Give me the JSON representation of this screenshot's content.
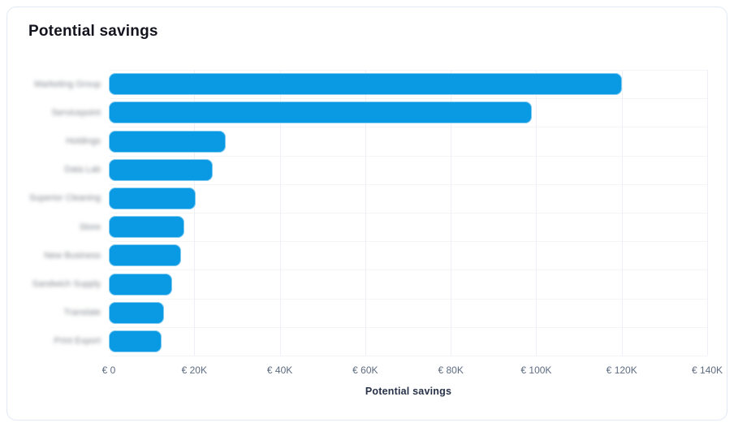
{
  "card": {
    "title": "Potential savings"
  },
  "colors": {
    "bar": "#0a99e3",
    "grid_v": "#edf1f7",
    "grid_h": "#f3f5f9",
    "tick_text": "#5d6b80",
    "axis_label_text": "#273147",
    "title_text": "#14141e",
    "card_border": "#e3e9f4",
    "y_label_text": "#85898f"
  },
  "chart_data": {
    "type": "bar",
    "orientation": "horizontal",
    "title": "Potential savings",
    "xlabel": "Potential savings",
    "ylabel": "",
    "xlim": [
      0,
      140000
    ],
    "grid": true,
    "legend": "none",
    "categories_redacted": true,
    "categories": [
      "Marketing Group",
      "Servicepoint",
      "Holdings",
      "Data Lab",
      "Superior Cleaning",
      "Store",
      "New Business",
      "Sandwich Supply",
      "Translate",
      "Print Export"
    ],
    "values": [
      120000,
      99000,
      27300,
      24300,
      20300,
      17700,
      17000,
      14800,
      12900,
      12400
    ],
    "x_ticks": [
      {
        "value": 0,
        "label": "€ 0"
      },
      {
        "value": 20000,
        "label": "€ 20K"
      },
      {
        "value": 40000,
        "label": "€ 40K"
      },
      {
        "value": 60000,
        "label": "€ 60K"
      },
      {
        "value": 80000,
        "label": "€ 80K"
      },
      {
        "value": 100000,
        "label": "€ 100K"
      },
      {
        "value": 120000,
        "label": "€ 120K"
      },
      {
        "value": 140000,
        "label": "€ 140K"
      }
    ]
  }
}
